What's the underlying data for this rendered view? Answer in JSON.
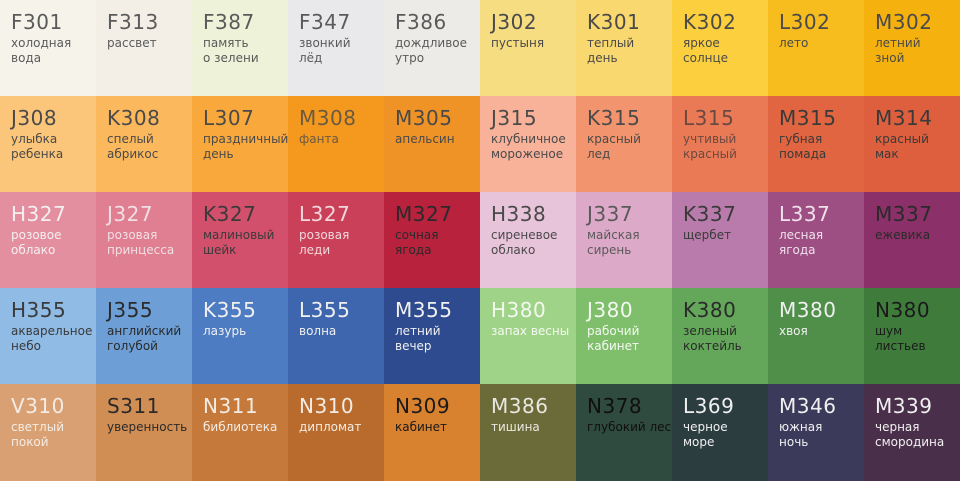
{
  "rows": [
    [
      {
        "code": "F301",
        "name": [
          "холодная",
          "вода"
        ],
        "color": "#f6f4ea",
        "text": "#5a5a5a"
      },
      {
        "code": "F313",
        "name": [
          "рассвет"
        ],
        "color": "#f3efe6",
        "text": "#5a5a5a"
      },
      {
        "code": "F387",
        "name": [
          "память",
          "о зелени"
        ],
        "color": "#edf2d8",
        "text": "#5a5a5a"
      },
      {
        "code": "F347",
        "name": [
          "звонкий",
          "лёд"
        ],
        "color": "#e9e9ec",
        "text": "#5a5a5a"
      },
      {
        "code": "F386",
        "name": [
          "дождливое",
          "утро"
        ],
        "color": "#ecebe8",
        "text": "#5a5a5a"
      },
      {
        "code": "J302",
        "name": [
          "пустыня"
        ],
        "color": "#f6dd82",
        "text": "#4a4a4a"
      },
      {
        "code": "K301",
        "name": [
          "теплый",
          "день"
        ],
        "color": "#f9d86f",
        "text": "#4a4a4a"
      },
      {
        "code": "K302",
        "name": [
          "яркое",
          "солнце"
        ],
        "color": "#fbcf3d",
        "text": "#4a4a4a"
      },
      {
        "code": "L302",
        "name": [
          "лето"
        ],
        "color": "#f7bc1d",
        "text": "#4a4a4a"
      },
      {
        "code": "M302",
        "name": [
          "летний",
          "зной"
        ],
        "color": "#f5b20f",
        "text": "#4a4a4a"
      }
    ],
    [
      {
        "code": "J308",
        "name": [
          "улыбка",
          "ребенка"
        ],
        "color": "#fbc67a",
        "text": "#4a4a4a"
      },
      {
        "code": "K308",
        "name": [
          "спелый",
          "абрикос"
        ],
        "color": "#fbb85c",
        "text": "#4a4a4a"
      },
      {
        "code": "L307",
        "name": [
          "праздничный",
          "день"
        ],
        "color": "#f9a93c",
        "text": "#4a4a4a"
      },
      {
        "code": "M308",
        "name": [
          "фанта"
        ],
        "color": "#f5991e",
        "text": "#6a5a40"
      },
      {
        "code": "M305",
        "name": [
          "апельсин"
        ],
        "color": "#f09326",
        "text": "#4a4a4a"
      },
      {
        "code": "J315",
        "name": [
          "клубничное",
          "мороженое"
        ],
        "color": "#f8b29a",
        "text": "#4a4a4a"
      },
      {
        "code": "K315",
        "name": [
          "красный",
          "лед"
        ],
        "color": "#f2946d",
        "text": "#4a4a4a"
      },
      {
        "code": "L315",
        "name": [
          "учтивый",
          "красный"
        ],
        "color": "#ea7a55",
        "text": "#6a4a40"
      },
      {
        "code": "M315",
        "name": [
          "губная",
          "помада"
        ],
        "color": "#e06540",
        "text": "#3a3a3a"
      },
      {
        "code": "M314",
        "name": [
          "красный",
          "мак"
        ],
        "color": "#dd5f3e",
        "text": "#3a3a3a"
      }
    ],
    [
      {
        "code": "H327",
        "name": [
          "розовое",
          "облако"
        ],
        "color": "#e48fa0",
        "text": "#f4f0f0"
      },
      {
        "code": "J327",
        "name": [
          "розовая",
          "принцесса"
        ],
        "color": "#e07e92",
        "text": "#f0e0e4"
      },
      {
        "code": "K327",
        "name": [
          "малиновый",
          "шейк"
        ],
        "color": "#d3506c",
        "text": "#3a3a3a"
      },
      {
        "code": "L327",
        "name": [
          "розовая",
          "леди"
        ],
        "color": "#ca4059",
        "text": "#f0d8dc"
      },
      {
        "code": "M327",
        "name": [
          "сочная",
          "ягода"
        ],
        "color": "#b8223d",
        "text": "#2a2a2a"
      },
      {
        "code": "H338",
        "name": [
          "сиреневое",
          "облако"
        ],
        "color": "#e8c4da",
        "text": "#4a4a4a"
      },
      {
        "code": "J337",
        "name": [
          "майская",
          "сирень"
        ],
        "color": "#dda9c8",
        "text": "#5a5a5a"
      },
      {
        "code": "K337",
        "name": [
          "щербет"
        ],
        "color": "#b97bab",
        "text": "#3a3a3a"
      },
      {
        "code": "L337",
        "name": [
          "лесная",
          "ягода"
        ],
        "color": "#9d4f84",
        "text": "#f0e0ec"
      },
      {
        "code": "M337",
        "name": [
          "ежевика"
        ],
        "color": "#8b3068",
        "text": "#2a2a2a"
      }
    ],
    [
      {
        "code": "H355",
        "name": [
          "акварельное",
          "небо"
        ],
        "color": "#8fbbe4",
        "text": "#3a3a3a"
      },
      {
        "code": "J355",
        "name": [
          "английский",
          "голубой"
        ],
        "color": "#6d9fd6",
        "text": "#2a2a2a"
      },
      {
        "code": "K355",
        "name": [
          "лазурь"
        ],
        "color": "#4e7cc3",
        "text": "#f0f0f0"
      },
      {
        "code": "L355",
        "name": [
          "волна"
        ],
        "color": "#3e66ae",
        "text": "#f0f0f0"
      },
      {
        "code": "M355",
        "name": [
          "летний",
          "вечер"
        ],
        "color": "#2e4b8f",
        "text": "#f0f0f0"
      },
      {
        "code": "H380",
        "name": [
          "запах весны"
        ],
        "color": "#9fd488",
        "text": "#f4f8f0"
      },
      {
        "code": "J380",
        "name": [
          "рабочий",
          "кабинет"
        ],
        "color": "#7fbf6c",
        "text": "#f4f8f0"
      },
      {
        "code": "K380",
        "name": [
          "зеленый",
          "коктейль"
        ],
        "color": "#64a75a",
        "text": "#2a2a2a"
      },
      {
        "code": "M380",
        "name": [
          "хвоя"
        ],
        "color": "#4f8f4a",
        "text": "#f0f0f0"
      },
      {
        "code": "N380",
        "name": [
          "шум",
          "листьев"
        ],
        "color": "#3f7c3c",
        "text": "#1a1a1a"
      }
    ],
    [
      {
        "code": "V310",
        "name": [
          "светлый",
          "покой"
        ],
        "color": "#d9a074",
        "text": "#f4ece4"
      },
      {
        "code": "S311",
        "name": [
          "уверенность"
        ],
        "color": "#d18e54",
        "text": "#2a2a2a"
      },
      {
        "code": "N311",
        "name": [
          "библиотека"
        ],
        "color": "#c57a3c",
        "text": "#f4ece4"
      },
      {
        "code": "N310",
        "name": [
          "дипломат"
        ],
        "color": "#b86b2d",
        "text": "#f4ece4"
      },
      {
        "code": "N309",
        "name": [
          "кабинет"
        ],
        "color": "#d8812f",
        "text": "#1a1a1a"
      },
      {
        "code": "M386",
        "name": [
          "тишина"
        ],
        "color": "#6b6b3a",
        "text": "#e8e8e0"
      },
      {
        "code": "N378",
        "name": [
          "глубокий лес"
        ],
        "color": "#2f4a3f",
        "text": "#101010"
      },
      {
        "code": "L369",
        "name": [
          "черное",
          "море"
        ],
        "color": "#2c3d40",
        "text": "#f0f0f0"
      },
      {
        "code": "M346",
        "name": [
          "южная",
          "ночь"
        ],
        "color": "#3c3a5a",
        "text": "#f0f0f0"
      },
      {
        "code": "M339",
        "name": [
          "черная",
          "смородина"
        ],
        "color": "#4a2f4a",
        "text": "#f0f0f0"
      }
    ]
  ]
}
